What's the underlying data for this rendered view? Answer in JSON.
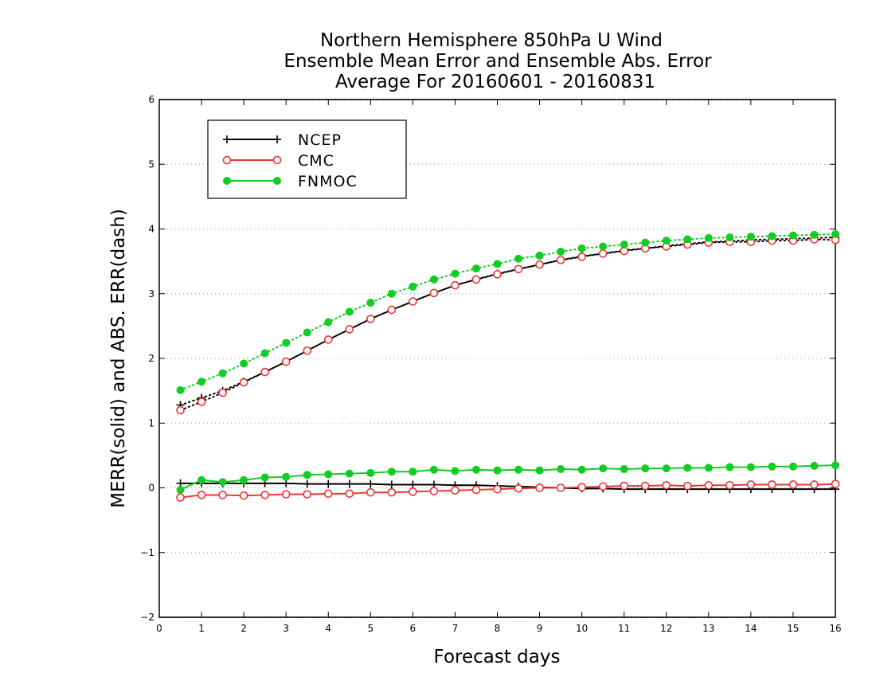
{
  "chart_data": {
    "type": "line",
    "title": [
      "Northern Hemisphere 850hPa U Wind",
      "Ensemble Mean Error and Ensemble Abs. Error",
      "Average For 20160601 - 20160831"
    ],
    "xlabel": "Forecast days",
    "ylabel": "MERR(solid) and ABS. ERR(dash)",
    "xlim": [
      0,
      16
    ],
    "ylim": [
      -2,
      6
    ],
    "xticks": [
      0,
      1,
      2,
      3,
      4,
      5,
      6,
      7,
      8,
      9,
      10,
      11,
      12,
      13,
      14,
      15,
      16
    ],
    "xtick_labels": [
      "0",
      "1",
      "2",
      "3",
      "4",
      "5",
      "6",
      "7",
      "8",
      "9",
      "10",
      "11",
      "12",
      "13",
      "14",
      "15",
      "16"
    ],
    "yticks": [
      -2,
      -1,
      0,
      1,
      2,
      3,
      4,
      5,
      6
    ],
    "ytick_labels": [
      "−2",
      "−1",
      "0",
      "1",
      "2",
      "3",
      "4",
      "5",
      "6"
    ],
    "grid": "horizontal-dotted",
    "legend_position": "top-left",
    "x": [
      0.5,
      1,
      1.5,
      2,
      2.5,
      3,
      3.5,
      4,
      4.5,
      5,
      5.5,
      6,
      6.5,
      7,
      7.5,
      8,
      8.5,
      9,
      9.5,
      10,
      10.5,
      11,
      11.5,
      12,
      12.5,
      13,
      13.5,
      14,
      14.5,
      15,
      15.5,
      16
    ],
    "series": [
      {
        "name": "NCEP",
        "color": "#000000",
        "marker": "plus",
        "merr": [
          0.07,
          0.07,
          0.07,
          0.07,
          0.07,
          0.07,
          0.06,
          0.06,
          0.06,
          0.06,
          0.05,
          0.05,
          0.05,
          0.04,
          0.04,
          0.03,
          0.02,
          0.01,
          0.0,
          -0.01,
          -0.01,
          -0.02,
          -0.02,
          -0.02,
          -0.02,
          -0.02,
          -0.02,
          -0.02,
          -0.02,
          -0.02,
          -0.02,
          -0.02
        ],
        "abs_err": [
          1.28,
          1.39,
          1.5,
          1.64,
          1.79,
          1.95,
          2.12,
          2.29,
          2.45,
          2.61,
          2.75,
          2.88,
          3.01,
          3.13,
          3.22,
          3.31,
          3.38,
          3.45,
          3.52,
          3.58,
          3.62,
          3.67,
          3.7,
          3.74,
          3.77,
          3.8,
          3.81,
          3.83,
          3.84,
          3.85,
          3.86,
          3.87
        ]
      },
      {
        "name": "CMC",
        "color": "#ee3333",
        "marker": "open-circle",
        "merr": [
          -0.15,
          -0.11,
          -0.11,
          -0.12,
          -0.11,
          -0.1,
          -0.1,
          -0.09,
          -0.09,
          -0.07,
          -0.07,
          -0.06,
          -0.05,
          -0.04,
          -0.03,
          -0.02,
          -0.01,
          0.0,
          0.0,
          0.01,
          0.02,
          0.03,
          0.03,
          0.04,
          0.03,
          0.04,
          0.04,
          0.05,
          0.05,
          0.05,
          0.05,
          0.06
        ],
        "abs_err": [
          1.2,
          1.33,
          1.47,
          1.63,
          1.79,
          1.95,
          2.12,
          2.29,
          2.45,
          2.61,
          2.75,
          2.88,
          3.01,
          3.13,
          3.22,
          3.3,
          3.38,
          3.45,
          3.52,
          3.57,
          3.62,
          3.66,
          3.7,
          3.73,
          3.76,
          3.79,
          3.8,
          3.8,
          3.82,
          3.82,
          3.84,
          3.83
        ]
      },
      {
        "name": "FNMOC",
        "color": "#11cc22",
        "marker": "filled-circle",
        "merr": [
          -0.03,
          0.12,
          0.09,
          0.12,
          0.16,
          0.17,
          0.2,
          0.21,
          0.22,
          0.23,
          0.25,
          0.25,
          0.28,
          0.26,
          0.28,
          0.27,
          0.28,
          0.27,
          0.29,
          0.28,
          0.3,
          0.29,
          0.3,
          0.3,
          0.31,
          0.31,
          0.32,
          0.32,
          0.33,
          0.33,
          0.34,
          0.35
        ],
        "abs_err": [
          1.51,
          1.64,
          1.77,
          1.92,
          2.08,
          2.24,
          2.4,
          2.56,
          2.72,
          2.86,
          3.0,
          3.11,
          3.22,
          3.31,
          3.39,
          3.46,
          3.54,
          3.59,
          3.65,
          3.7,
          3.73,
          3.76,
          3.79,
          3.82,
          3.84,
          3.86,
          3.87,
          3.88,
          3.89,
          3.9,
          3.91,
          3.92
        ]
      }
    ]
  }
}
